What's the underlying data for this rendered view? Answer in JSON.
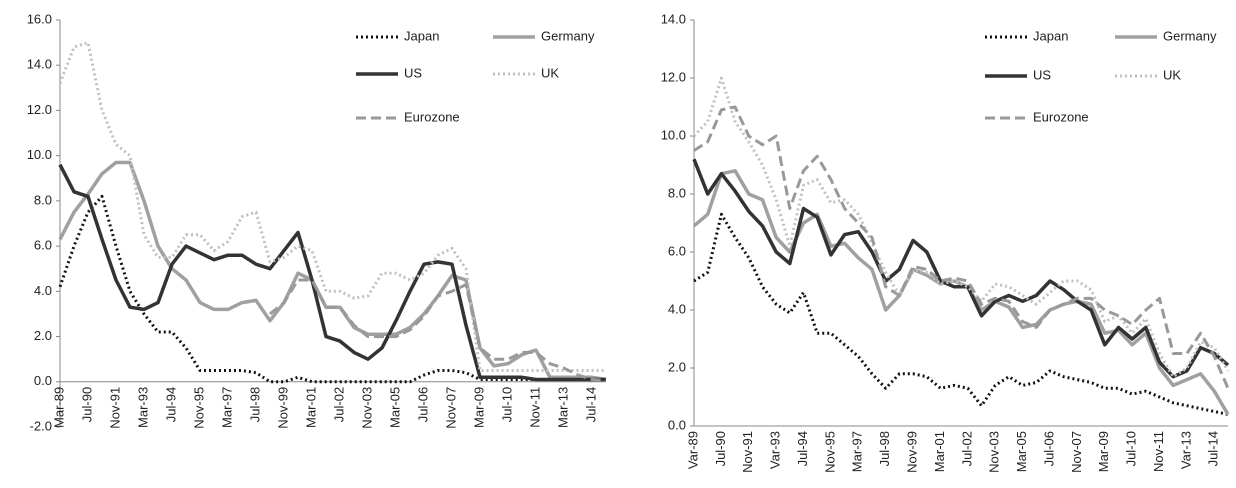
{
  "chart_data": [
    {
      "type": "line",
      "categories": [
        "Mar-89",
        null,
        "Jul-90",
        null,
        "Nov-91",
        null,
        "Mar-93",
        null,
        "Jul-94",
        null,
        "Nov-95",
        null,
        "Mar-97",
        null,
        "Jul-98",
        null,
        "Nov-99",
        null,
        "Mar-01",
        null,
        "Jul-02",
        null,
        "Nov-03",
        null,
        "Mar-05",
        null,
        "Jul-06",
        null,
        "Nov-07",
        null,
        "Mar-09",
        null,
        "Jul-10",
        null,
        "Nov-11",
        null,
        "Mar-13",
        null,
        "Jul-14",
        null
      ],
      "ylim": [
        -2,
        16
      ],
      "yticks": [
        {
          "value": -2,
          "label": "-2.0"
        },
        {
          "value": 0,
          "label": "0.0"
        },
        {
          "value": 2,
          "label": "2.0"
        },
        {
          "value": 4,
          "label": "4.0"
        },
        {
          "value": 6,
          "label": "6.0"
        },
        {
          "value": 8,
          "label": "8.0"
        },
        {
          "value": 10,
          "label": "10.0"
        },
        {
          "value": 12,
          "label": "12.0"
        },
        {
          "value": 14,
          "label": "14.0"
        },
        {
          "value": 16,
          "label": "16.0"
        }
      ],
      "series": [
        {
          "name": "Japan",
          "color": "#111111",
          "style": "dotted",
          "values": [
            4.2,
            6.0,
            7.5,
            8.2,
            6.0,
            4.0,
            3.0,
            2.2,
            2.2,
            1.5,
            0.5,
            0.5,
            0.5,
            0.5,
            0.4,
            0.0,
            0.0,
            0.2,
            0.0,
            0.0,
            0.0,
            0.0,
            0.0,
            0.0,
            0.0,
            0.0,
            0.3,
            0.5,
            0.5,
            0.4,
            0.1,
            0.1,
            0.1,
            0.1,
            0.1,
            0.1,
            0.1,
            0.1,
            0.1,
            0.1
          ]
        },
        {
          "name": "Germany",
          "color": "#a0a0a0",
          "style": "solid",
          "values": [
            6.3,
            7.5,
            8.3,
            9.2,
            9.7,
            9.7,
            8.0,
            6.0,
            5.0,
            4.5,
            3.5,
            3.2,
            3.2,
            3.5,
            3.6,
            2.7,
            3.5,
            4.8,
            4.5,
            3.3,
            3.3,
            2.4,
            2.1,
            2.1,
            2.1,
            2.4,
            3.0,
            3.8,
            4.7,
            4.5,
            1.5,
            0.7,
            0.8,
            1.2,
            1.4,
            0.2,
            0.2,
            0.2,
            0.2,
            0.1
          ]
        },
        {
          "name": "US",
          "color": "#333333",
          "style": "solid",
          "values": [
            9.6,
            8.4,
            8.2,
            6.3,
            4.5,
            3.3,
            3.2,
            3.5,
            5.2,
            6.0,
            5.7,
            5.4,
            5.6,
            5.6,
            5.2,
            5.0,
            5.8,
            6.6,
            4.5,
            2.0,
            1.8,
            1.3,
            1.0,
            1.5,
            2.7,
            4.0,
            5.2,
            5.3,
            5.2,
            2.5,
            0.2,
            0.2,
            0.2,
            0.2,
            0.1,
            0.1,
            0.1,
            0.1,
            0.1,
            0.1
          ]
        },
        {
          "name": "UK",
          "color": "#c0c0c0",
          "style": "dotted",
          "values": [
            13.2,
            14.8,
            15.0,
            12.0,
            10.5,
            10.0,
            6.5,
            5.5,
            5.5,
            6.5,
            6.5,
            5.8,
            6.2,
            7.3,
            7.5,
            5.3,
            5.5,
            6.0,
            5.8,
            4.0,
            4.0,
            3.7,
            3.8,
            4.8,
            4.8,
            4.5,
            4.8,
            5.6,
            5.9,
            5.0,
            0.5,
            0.5,
            0.5,
            0.5,
            0.5,
            0.5,
            0.5,
            0.5,
            0.5,
            0.5
          ]
        },
        {
          "name": "Eurozone",
          "color": "#999999",
          "style": "dashed",
          "values": [
            null,
            null,
            null,
            null,
            null,
            null,
            null,
            null,
            null,
            null,
            null,
            null,
            null,
            null,
            null,
            3.0,
            3.5,
            4.5,
            4.5,
            3.3,
            3.3,
            2.5,
            2.0,
            2.0,
            2.0,
            2.3,
            2.9,
            3.8,
            4.0,
            4.3,
            1.5,
            1.0,
            1.0,
            1.3,
            1.3,
            0.8,
            0.6,
            0.3,
            0.1,
            0.05
          ]
        }
      ]
    },
    {
      "type": "line",
      "categories": [
        "Var-89",
        null,
        "Jul-90",
        null,
        "Nov-91",
        null,
        "Var-93",
        null,
        "Jul-94",
        null,
        "Nov-95",
        null,
        "Mar-97",
        null,
        "Jul-98",
        null,
        "Nov-99",
        null,
        "Mar-01",
        null,
        "Jul-02",
        null,
        "Nov-03",
        null,
        "Mar-05",
        null,
        "Jul-06",
        null,
        "Nov-07",
        null,
        "Mar-09",
        null,
        "Jul-10",
        null,
        "Nov-11",
        null,
        "Var-13",
        null,
        "Jul-14",
        null
      ],
      "ylim": [
        0,
        14
      ],
      "yticks": [
        {
          "value": 0,
          "label": "0.0"
        },
        {
          "value": 2,
          "label": "2.0"
        },
        {
          "value": 4,
          "label": "4.0"
        },
        {
          "value": 6,
          "label": "6.0"
        },
        {
          "value": 8,
          "label": "8.0"
        },
        {
          "value": 10,
          "label": "10.0"
        },
        {
          "value": 12,
          "label": "12.0"
        },
        {
          "value": 14,
          "label": "14.0"
        }
      ],
      "series": [
        {
          "name": "Japan",
          "color": "#111111",
          "style": "dotted",
          "values": [
            5.0,
            5.3,
            7.3,
            6.5,
            5.8,
            4.8,
            4.2,
            3.9,
            4.6,
            3.2,
            3.2,
            2.8,
            2.4,
            1.8,
            1.3,
            1.8,
            1.8,
            1.7,
            1.3,
            1.4,
            1.3,
            0.7,
            1.4,
            1.7,
            1.4,
            1.5,
            1.9,
            1.7,
            1.6,
            1.5,
            1.3,
            1.3,
            1.1,
            1.2,
            1.0,
            0.8,
            0.7,
            0.6,
            0.5,
            0.4
          ]
        },
        {
          "name": "Germany",
          "color": "#a0a0a0",
          "style": "solid",
          "values": [
            6.9,
            7.3,
            8.7,
            8.8,
            8.0,
            7.8,
            6.5,
            6.0,
            7.0,
            7.3,
            6.2,
            6.3,
            5.8,
            5.4,
            4.0,
            4.5,
            5.4,
            5.2,
            4.9,
            5.0,
            4.8,
            4.0,
            4.3,
            4.1,
            3.4,
            3.5,
            4.0,
            4.2,
            4.3,
            4.2,
            3.2,
            3.3,
            2.8,
            3.2,
            2.0,
            1.4,
            1.6,
            1.8,
            1.2,
            0.4
          ]
        },
        {
          "name": "US",
          "color": "#333333",
          "style": "solid",
          "values": [
            9.2,
            8.0,
            8.7,
            8.1,
            7.4,
            6.9,
            6.0,
            5.6,
            7.5,
            7.2,
            5.9,
            6.6,
            6.7,
            6.0,
            5.0,
            5.4,
            6.4,
            6.0,
            5.0,
            4.8,
            4.8,
            3.8,
            4.3,
            4.5,
            4.3,
            4.5,
            5.0,
            4.7,
            4.3,
            4.0,
            2.8,
            3.4,
            3.0,
            3.4,
            2.2,
            1.7,
            1.9,
            2.7,
            2.5,
            2.1
          ]
        },
        {
          "name": "UK",
          "color": "#c0c0c0",
          "style": "dotted",
          "values": [
            10.0,
            10.5,
            12.0,
            10.5,
            9.8,
            9.0,
            7.8,
            6.2,
            8.3,
            8.5,
            7.7,
            7.8,
            7.3,
            6.3,
            5.3,
            4.5,
            5.4,
            5.3,
            4.9,
            5.0,
            4.8,
            4.3,
            4.9,
            4.8,
            4.5,
            4.2,
            4.6,
            5.0,
            5.0,
            4.7,
            3.6,
            3.8,
            3.2,
            3.7,
            2.5,
            1.7,
            2.0,
            2.9,
            2.7,
            1.9
          ]
        },
        {
          "name": "Eurozone",
          "color": "#999999",
          "style": "dashed",
          "values": [
            9.5,
            9.8,
            10.9,
            11.0,
            10.0,
            9.7,
            10.0,
            7.5,
            8.8,
            9.3,
            8.5,
            7.5,
            7.0,
            6.5,
            4.8,
            4.5,
            5.5,
            5.4,
            5.0,
            5.1,
            5.0,
            4.2,
            4.4,
            4.3,
            3.6,
            3.4,
            4.0,
            4.2,
            4.4,
            4.4,
            4.0,
            3.8,
            3.5,
            4.0,
            4.4,
            2.5,
            2.5,
            3.2,
            2.4,
            1.3
          ]
        }
      ]
    }
  ]
}
